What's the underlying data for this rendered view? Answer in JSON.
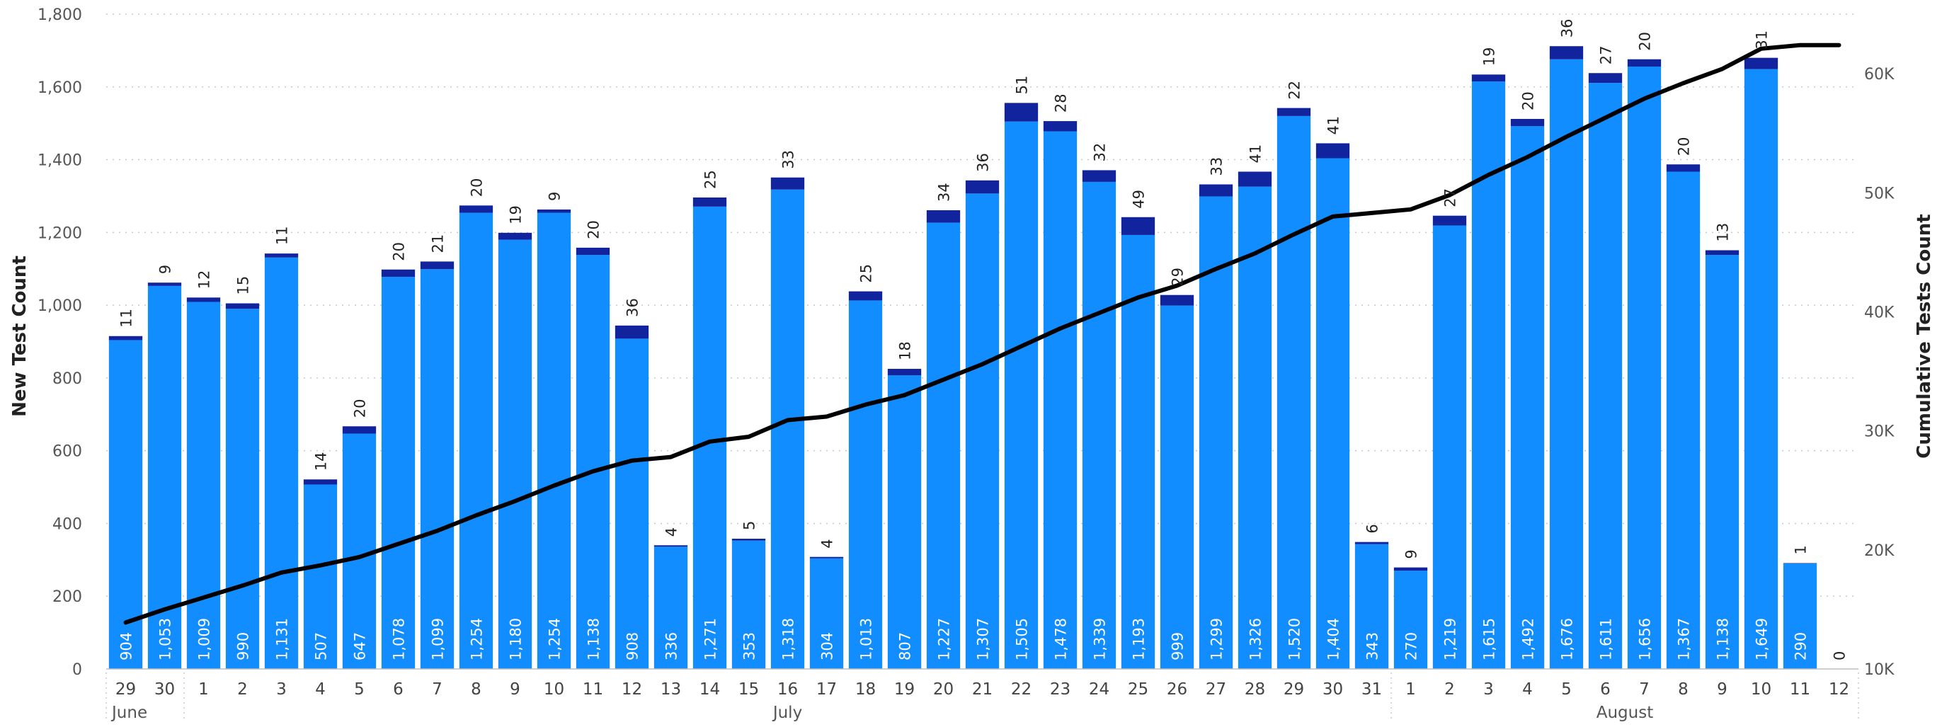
{
  "chart_data": {
    "type": "bar",
    "stacked": true,
    "categories": [
      "29",
      "30",
      "1",
      "2",
      "3",
      "4",
      "5",
      "6",
      "7",
      "8",
      "9",
      "10",
      "11",
      "12",
      "13",
      "14",
      "15",
      "16",
      "17",
      "18",
      "19",
      "20",
      "21",
      "22",
      "23",
      "24",
      "25",
      "26",
      "27",
      "28",
      "29",
      "30",
      "31",
      "1",
      "2",
      "3",
      "4",
      "5",
      "6",
      "7",
      "8",
      "9",
      "10",
      "11",
      "12"
    ],
    "months": [
      {
        "label": "June",
        "start": 0,
        "end": 1
      },
      {
        "label": "July",
        "start": 2,
        "end": 32
      },
      {
        "label": "August",
        "start": 33,
        "end": 44
      }
    ],
    "series": [
      {
        "name": "",
        "color": "#118DFF",
        "values": [
          904,
          1053,
          1009,
          990,
          1131,
          507,
          647,
          1078,
          1099,
          1254,
          1180,
          1254,
          1138,
          908,
          336,
          1271,
          353,
          1318,
          304,
          1013,
          807,
          1227,
          1307,
          1505,
          1478,
          1339,
          1193,
          999,
          1299,
          1326,
          1520,
          1404,
          343,
          270,
          1219,
          1615,
          1492,
          1676,
          1611,
          1656,
          1367,
          1138,
          1649,
          290,
          0
        ]
      },
      {
        "name": "",
        "color": "#12239E",
        "values": [
          11,
          9,
          12,
          15,
          11,
          14,
          20,
          20,
          21,
          20,
          19,
          9,
          20,
          36,
          4,
          25,
          5,
          33,
          4,
          25,
          18,
          34,
          36,
          51,
          28,
          32,
          49,
          29,
          33,
          41,
          22,
          41,
          6,
          9,
          27,
          19,
          20,
          36,
          27,
          20,
          20,
          13,
          31,
          1,
          0
        ]
      }
    ],
    "line": {
      "name": "",
      "color": "#000000",
      "axis": "right",
      "values": [
        13900,
        15000,
        16000,
        17000,
        18100,
        18700,
        19400,
        20500,
        21600,
        22900,
        24100,
        25400,
        26600,
        27500,
        27800,
        29100,
        29500,
        30900,
        31200,
        32200,
        33000,
        34300,
        35600,
        37100,
        38600,
        39900,
        41200,
        42200,
        43600,
        44900,
        46500,
        48000,
        48300,
        48600,
        49800,
        51500,
        53000,
        54700,
        56300,
        57900,
        59200,
        60400,
        62100,
        62400,
        62400
      ]
    },
    "y_left": {
      "label": "New Test Count",
      "min": 0,
      "max": 1800,
      "ticks": [
        "0",
        "200",
        "400",
        "600",
        "800",
        "1,000",
        "1,200",
        "1,400",
        "1,600",
        "1,800"
      ]
    },
    "y_right": {
      "label": "Cumulative Tests Count",
      "min": 10000,
      "max": 65000,
      "ticks": [
        "10K",
        "20K",
        "30K",
        "40K",
        "50K",
        "60K"
      ]
    },
    "grid": true
  }
}
